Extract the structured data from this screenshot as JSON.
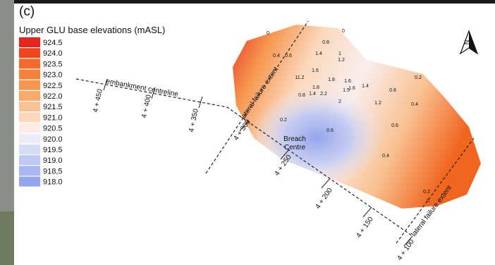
{
  "panel_label": "(c)",
  "legend": {
    "title": "Upper GLU base elevations (mASL)",
    "items": [
      {
        "label": "924.5",
        "color": "#e8241b"
      },
      {
        "label": "924.0",
        "color": "#f0461f"
      },
      {
        "label": "923.5",
        "color": "#f46a2c"
      },
      {
        "label": "923.0",
        "color": "#f5823c"
      },
      {
        "label": "922.5",
        "color": "#f6964f"
      },
      {
        "label": "922.0",
        "color": "#f8ab6b"
      },
      {
        "label": "921.5",
        "color": "#f9c293"
      },
      {
        "label": "921.0",
        "color": "#fbd8bc"
      },
      {
        "label": "920.5",
        "color": "#fbeae6"
      },
      {
        "label": "920.0",
        "color": "#ecebf8"
      },
      {
        "label": "919.5",
        "color": "#d6dbf6"
      },
      {
        "label": "919.0",
        "color": "#c0c9f3"
      },
      {
        "label": "918,5",
        "color": "#a9b7f0"
      },
      {
        "label": "918.0",
        "color": "#93a5ec"
      }
    ]
  },
  "annotations": {
    "centreline": "embankment centreline",
    "chainages": [
      "4 + 450",
      "4 + 400",
      "4 + 350",
      "4 + 300",
      "4 + 250",
      "4 + 200",
      "4 + 150",
      "4 + 100"
    ],
    "failure_extents": [
      "lateral failure extent",
      "lateral failure extent"
    ],
    "breach_centre": [
      "Breach",
      "Centre"
    ]
  },
  "point_labels": [
    "0",
    "0",
    "0.8",
    "0.4",
    "0.6",
    "1.4",
    "1",
    "1.2",
    "11.2",
    "1.6",
    "1.8",
    "1.6",
    "1.8",
    "1.6",
    "1.4",
    "1.5",
    "0.8",
    "1.4",
    "2.2",
    "0.8",
    "1.2",
    "2",
    "0.2",
    "0.4",
    "0.2",
    "0.6",
    "0.6",
    "0.4",
    "0.2",
    "0"
  ]
}
